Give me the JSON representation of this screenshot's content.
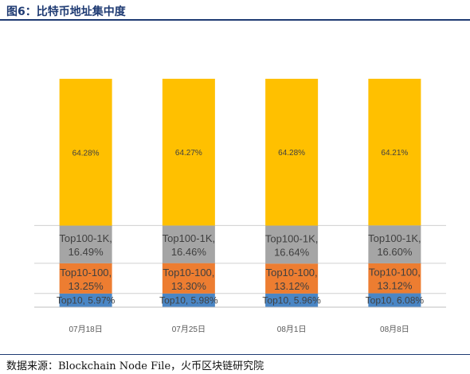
{
  "figure": {
    "title": "图6：比特币地址集中度",
    "source": "数据来源：Blockchain Node File，火币区块链研究院"
  },
  "chart_data": {
    "type": "bar",
    "stacked": true,
    "categories": [
      "07月18日",
      "07月25日",
      "08月1日",
      "08月8日"
    ],
    "series": [
      {
        "name": "Top10",
        "color": "#4a86c5",
        "values": [
          5.97,
          5.98,
          5.96,
          6.08
        ],
        "labels": [
          "Top10, 5.97%",
          "Top10, 5.98%",
          "Top10, 5.96%",
          "Top10, 6.08%"
        ]
      },
      {
        "name": "Top10-100",
        "color": "#ed7d31",
        "values": [
          13.25,
          13.3,
          13.12,
          13.12
        ],
        "labels": [
          [
            "Top10-100,",
            "13.25%"
          ],
          [
            "Top10-100,",
            "13.30%"
          ],
          [
            "Top10-100,",
            "13.12%"
          ],
          [
            "Top10-100,",
            "13.12%"
          ]
        ]
      },
      {
        "name": "Top100-1K",
        "color": "#a5a5a5",
        "values": [
          16.49,
          16.46,
          16.64,
          16.6
        ],
        "labels": [
          [
            "Top100-1K,",
            "16.49%"
          ],
          [
            "Top100-1K,",
            "16.46%"
          ],
          [
            "Top100-1K,",
            "16.64%"
          ],
          [
            "Top100-1K,",
            "16.60%"
          ]
        ]
      },
      {
        "name": "",
        "color": "#ffc000",
        "values": [
          64.28,
          64.27,
          64.28,
          64.21
        ],
        "labels": [
          "64.28%",
          "64.27%",
          "64.28%",
          "64.21%"
        ]
      }
    ],
    "ylim": [
      0,
      100
    ],
    "grid": true,
    "legend": "none"
  }
}
